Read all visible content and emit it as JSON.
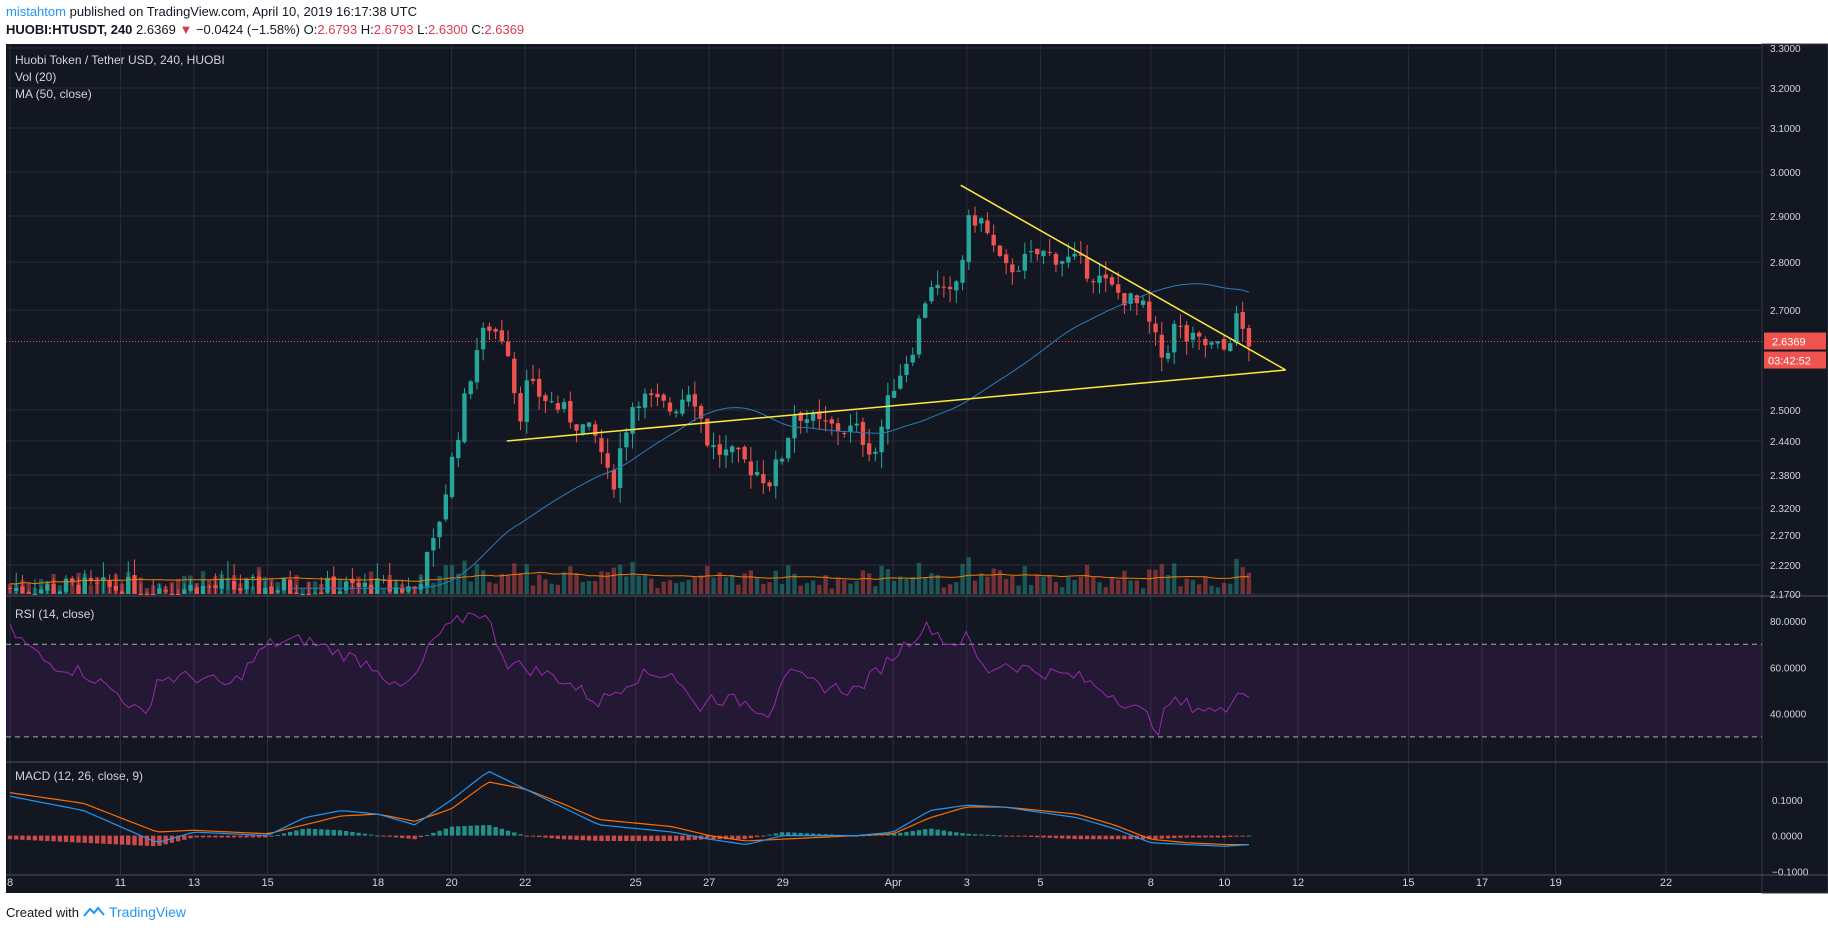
{
  "header": {
    "author": "mistahtom",
    "published_text": "published on TradingView.com, April 10, 2019 16:17:38 UTC",
    "symbol": "HUOBI:HTUSDT, 240",
    "last": "2.6369",
    "change": "−0.0424 (−1.58%)",
    "o_label": "O:",
    "o_value": "2.6793",
    "h_label": "H:",
    "h_value": "2.6793",
    "l_label": "L:",
    "l_value": "2.6300",
    "c_label": "C:",
    "c_value": "2.6369"
  },
  "footer": {
    "created_with": "Created with",
    "brand": "TradingView"
  },
  "colors": {
    "background": "#131722",
    "grid": "#2a2e39",
    "up": "#26a69a",
    "down": "#ef5350",
    "ma": "#2c7bb6",
    "vol_ma": "#f57c00",
    "trendline": "#ffeb3b",
    "rsi": "#9c27b0",
    "macd": "#2196f3",
    "signal": "#ff6d00",
    "price_line": "#ef5350"
  },
  "chart_data": [
    {
      "type": "candlestick",
      "pane": "price",
      "legend": [
        "Huobi Token / Tether USD, 240, HUOBI",
        "Vol (20)",
        "MA (50, close)"
      ],
      "y_ticks": [
        "3.3000",
        "3.2000",
        "3.1000",
        "3.0000",
        "2.9000",
        "2.8000",
        "2.7000",
        "2.5000",
        "2.4400",
        "2.3800",
        "2.3200",
        "2.2700",
        "2.2200",
        "2.1700"
      ],
      "x_ticks": [
        "8",
        "11",
        "13",
        "15",
        "18",
        "20",
        "22",
        "25",
        "27",
        "29",
        "Apr",
        "3",
        "5",
        "8",
        "10",
        "12",
        "15",
        "17",
        "19",
        "22"
      ],
      "last_price_label": "2.6369",
      "countdown_label": "03:42:52",
      "price_keypoints": [
        [
          "2019-03-08",
          2.18
        ],
        [
          "2019-03-19",
          2.18
        ],
        [
          "2019-03-19 12:00",
          2.25
        ],
        [
          "2019-03-20",
          2.4
        ],
        [
          "2019-03-20 16:00",
          2.62
        ],
        [
          "2019-03-21",
          2.67
        ],
        [
          "2019-03-21 12:00",
          2.64
        ],
        [
          "2019-03-21 20:00",
          2.48
        ],
        [
          "2019-03-22",
          2.55
        ],
        [
          "2019-03-23",
          2.5
        ],
        [
          "2019-03-24",
          2.44
        ],
        [
          "2019-03-24 08:00",
          2.35
        ],
        [
          "2019-03-24 16:00",
          2.45
        ],
        [
          "2019-03-25",
          2.53
        ],
        [
          "2019-03-26",
          2.5
        ],
        [
          "2019-03-26 12:00",
          2.55
        ],
        [
          "2019-03-27",
          2.43
        ],
        [
          "2019-03-28",
          2.4
        ],
        [
          "2019-03-28 16:00",
          2.37
        ],
        [
          "2019-03-29",
          2.42
        ],
        [
          "2019-03-29 08:00",
          2.5
        ],
        [
          "2019-03-30",
          2.47
        ],
        [
          "2019-03-31",
          2.46
        ],
        [
          "2019-03-31 12:00",
          2.42
        ],
        [
          "2019-04-01",
          2.55
        ],
        [
          "2019-04-01 12:00",
          2.62
        ],
        [
          "2019-04-02",
          2.76
        ],
        [
          "2019-04-02 12:00",
          2.72
        ],
        [
          "2019-04-02 20:00",
          2.78
        ],
        [
          "2019-04-03",
          2.88
        ],
        [
          "2019-04-03 08:00",
          2.9
        ],
        [
          "2019-04-04",
          2.78
        ],
        [
          "2019-04-05",
          2.82
        ],
        [
          "2019-04-06",
          2.8
        ],
        [
          "2019-04-07",
          2.74
        ],
        [
          "2019-04-07 20:00",
          2.7
        ],
        [
          "2019-04-08",
          2.66
        ],
        [
          "2019-04-08 08:00",
          2.6
        ],
        [
          "2019-04-08 16:00",
          2.67
        ],
        [
          "2019-04-09",
          2.64
        ],
        [
          "2019-04-10",
          2.62
        ],
        [
          "2019-04-10 08:00",
          2.68
        ],
        [
          "2019-04-10 16:00",
          2.6369
        ]
      ],
      "trendlines": [
        {
          "from": [
            "2019-04-02 20:00",
            2.97
          ],
          "to": [
            "2019-04-11 16:00",
            2.58
          ]
        },
        {
          "from": [
            "2019-03-21 12:00",
            2.44
          ],
          "to": [
            "2019-04-11 16:00",
            2.58
          ]
        }
      ]
    },
    {
      "type": "line",
      "pane": "rsi",
      "legend": "RSI (14, close)",
      "y_ticks": [
        "80.0000",
        "60.0000",
        "40.0000"
      ],
      "upper_band": 70,
      "lower_band": 30,
      "keypoints": [
        [
          "2019-03-08",
          76
        ],
        [
          "2019-03-09",
          62
        ],
        [
          "2019-03-10",
          58
        ],
        [
          "2019-03-11",
          48
        ],
        [
          "2019-03-11 16:00",
          38
        ],
        [
          "2019-03-12",
          55
        ],
        [
          "2019-03-13",
          56
        ],
        [
          "2019-03-14",
          52
        ],
        [
          "2019-03-15",
          70
        ],
        [
          "2019-03-16",
          72
        ],
        [
          "2019-03-17",
          66
        ],
        [
          "2019-03-18",
          60
        ],
        [
          "2019-03-18 12:00",
          50
        ],
        [
          "2019-03-19",
          55
        ],
        [
          "2019-03-19 12:00",
          72
        ],
        [
          "2019-03-20",
          78
        ],
        [
          "2019-03-20 16:00",
          85
        ],
        [
          "2019-03-21",
          80
        ],
        [
          "2019-03-21 12:00",
          62
        ],
        [
          "2019-03-22",
          60
        ],
        [
          "2019-03-23",
          55
        ],
        [
          "2019-03-24",
          45
        ],
        [
          "2019-03-25",
          56
        ],
        [
          "2019-03-26",
          58
        ],
        [
          "2019-03-26 16:00",
          42
        ],
        [
          "2019-03-27",
          47
        ],
        [
          "2019-03-28",
          45
        ],
        [
          "2019-03-28 16:00",
          40
        ],
        [
          "2019-03-29",
          58
        ],
        [
          "2019-03-30",
          52
        ],
        [
          "2019-03-31",
          50
        ],
        [
          "2019-04-01",
          65
        ],
        [
          "2019-04-01 16:00",
          75
        ],
        [
          "2019-04-02",
          78
        ],
        [
          "2019-04-02 12:00",
          70
        ],
        [
          "2019-04-03",
          73
        ],
        [
          "2019-04-03 12:00",
          58
        ],
        [
          "2019-04-04",
          62
        ],
        [
          "2019-04-05",
          58
        ],
        [
          "2019-04-06",
          56
        ],
        [
          "2019-04-07",
          48
        ],
        [
          "2019-04-08",
          38
        ],
        [
          "2019-04-08 04:00",
          32
        ],
        [
          "2019-04-08 12:00",
          45
        ],
        [
          "2019-04-09",
          44
        ],
        [
          "2019-04-10",
          40
        ],
        [
          "2019-04-10 08:00",
          52
        ],
        [
          "2019-04-10 16:00",
          47
        ]
      ]
    },
    {
      "type": "line",
      "pane": "macd",
      "legend": "MACD (12, 26, close, 9)",
      "y_ticks": [
        "0.1000",
        "0.0000",
        "−0.1000"
      ],
      "macd_keypoints": [
        [
          "2019-03-08",
          0.11
        ],
        [
          "2019-03-10",
          0.07
        ],
        [
          "2019-03-12",
          -0.02
        ],
        [
          "2019-03-13",
          0.01
        ],
        [
          "2019-03-15",
          0.0
        ],
        [
          "2019-03-16",
          0.05
        ],
        [
          "2019-03-17",
          0.07
        ],
        [
          "2019-03-18",
          0.06
        ],
        [
          "2019-03-19",
          0.03
        ],
        [
          "2019-03-20",
          0.1
        ],
        [
          "2019-03-21",
          0.18
        ],
        [
          "2019-03-22",
          0.13
        ],
        [
          "2019-03-23",
          0.08
        ],
        [
          "2019-03-24",
          0.03
        ],
        [
          "2019-03-26",
          0.01
        ],
        [
          "2019-03-27",
          -0.01
        ],
        [
          "2019-03-28",
          -0.025
        ],
        [
          "2019-03-29",
          0.0
        ],
        [
          "2019-03-31",
          0.0
        ],
        [
          "2019-04-01",
          0.01
        ],
        [
          "2019-04-02",
          0.07
        ],
        [
          "2019-04-03",
          0.085
        ],
        [
          "2019-04-04",
          0.08
        ],
        [
          "2019-04-06",
          0.05
        ],
        [
          "2019-04-07",
          0.02
        ],
        [
          "2019-04-08",
          -0.02
        ],
        [
          "2019-04-09",
          -0.025
        ],
        [
          "2019-04-10",
          -0.03
        ],
        [
          "2019-04-10 16:00",
          -0.025
        ]
      ],
      "signal_keypoints": [
        [
          "2019-03-08",
          0.12
        ],
        [
          "2019-03-10",
          0.09
        ],
        [
          "2019-03-12",
          0.01
        ],
        [
          "2019-03-13",
          0.015
        ],
        [
          "2019-03-15",
          0.005
        ],
        [
          "2019-03-17",
          0.055
        ],
        [
          "2019-03-18",
          0.06
        ],
        [
          "2019-03-19",
          0.04
        ],
        [
          "2019-03-20",
          0.075
        ],
        [
          "2019-03-21",
          0.15
        ],
        [
          "2019-03-22",
          0.13
        ],
        [
          "2019-03-23",
          0.09
        ],
        [
          "2019-03-24",
          0.045
        ],
        [
          "2019-03-26",
          0.025
        ],
        [
          "2019-03-27",
          0.0
        ],
        [
          "2019-03-28",
          -0.015
        ],
        [
          "2019-03-29",
          -0.01
        ],
        [
          "2019-03-31",
          0.0
        ],
        [
          "2019-04-01",
          0.005
        ],
        [
          "2019-04-02",
          0.05
        ],
        [
          "2019-04-03",
          0.08
        ],
        [
          "2019-04-04",
          0.08
        ],
        [
          "2019-04-06",
          0.06
        ],
        [
          "2019-04-07",
          0.03
        ],
        [
          "2019-04-08",
          -0.01
        ],
        [
          "2019-04-09",
          -0.02
        ],
        [
          "2019-04-10",
          -0.025
        ],
        [
          "2019-04-10 16:00",
          -0.025
        ]
      ]
    }
  ]
}
